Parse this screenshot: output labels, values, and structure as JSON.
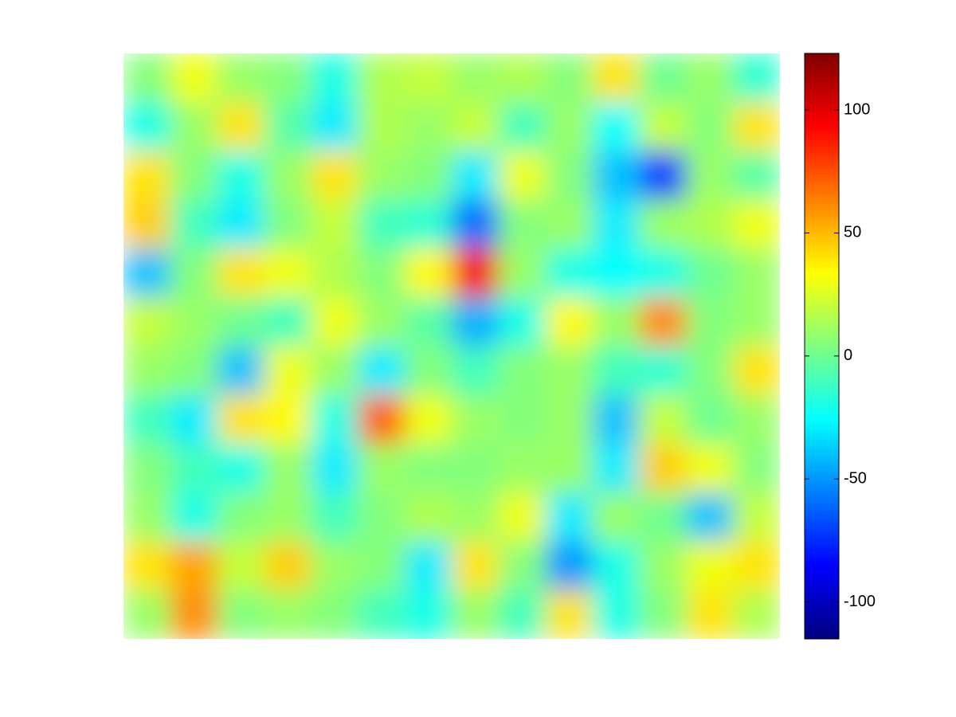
{
  "chart_data": {
    "type": "heatmap",
    "colormap": "jet",
    "z": [
      [
        5,
        30,
        10,
        5,
        -20,
        15,
        20,
        10,
        15,
        5,
        40,
        0,
        10,
        -15
      ],
      [
        -20,
        10,
        40,
        -5,
        -30,
        15,
        10,
        20,
        -10,
        10,
        -25,
        20,
        5,
        40
      ],
      [
        40,
        5,
        -20,
        10,
        40,
        10,
        5,
        -30,
        30,
        5,
        -40,
        -70,
        10,
        -5
      ],
      [
        45,
        -10,
        -30,
        5,
        20,
        -10,
        -15,
        -60,
        5,
        10,
        -30,
        10,
        15,
        30
      ],
      [
        -40,
        5,
        40,
        30,
        15,
        5,
        35,
        95,
        10,
        -20,
        -25,
        -20,
        0,
        10
      ],
      [
        20,
        10,
        0,
        -10,
        30,
        10,
        -5,
        -45,
        -20,
        35,
        10,
        60,
        5,
        10
      ],
      [
        10,
        5,
        -40,
        30,
        10,
        -30,
        5,
        -10,
        5,
        10,
        -10,
        -15,
        5,
        40
      ],
      [
        -10,
        -30,
        40,
        35,
        -20,
        70,
        30,
        10,
        5,
        10,
        -40,
        20,
        0,
        10
      ],
      [
        5,
        -10,
        -20,
        10,
        -30,
        10,
        5,
        5,
        10,
        10,
        -30,
        45,
        30,
        5
      ],
      [
        10,
        -20,
        5,
        10,
        -10,
        5,
        15,
        10,
        30,
        -30,
        10,
        0,
        -40,
        20
      ],
      [
        40,
        55,
        20,
        45,
        10,
        5,
        -30,
        40,
        5,
        -50,
        -20,
        10,
        30,
        40
      ],
      [
        10,
        60,
        5,
        10,
        5,
        -10,
        -20,
        10,
        -10,
        40,
        -20,
        5,
        40,
        15
      ]
    ],
    "clim": [
      -115,
      123
    ],
    "colorbar_ticks": [
      -100,
      -50,
      0,
      50,
      100
    ]
  }
}
